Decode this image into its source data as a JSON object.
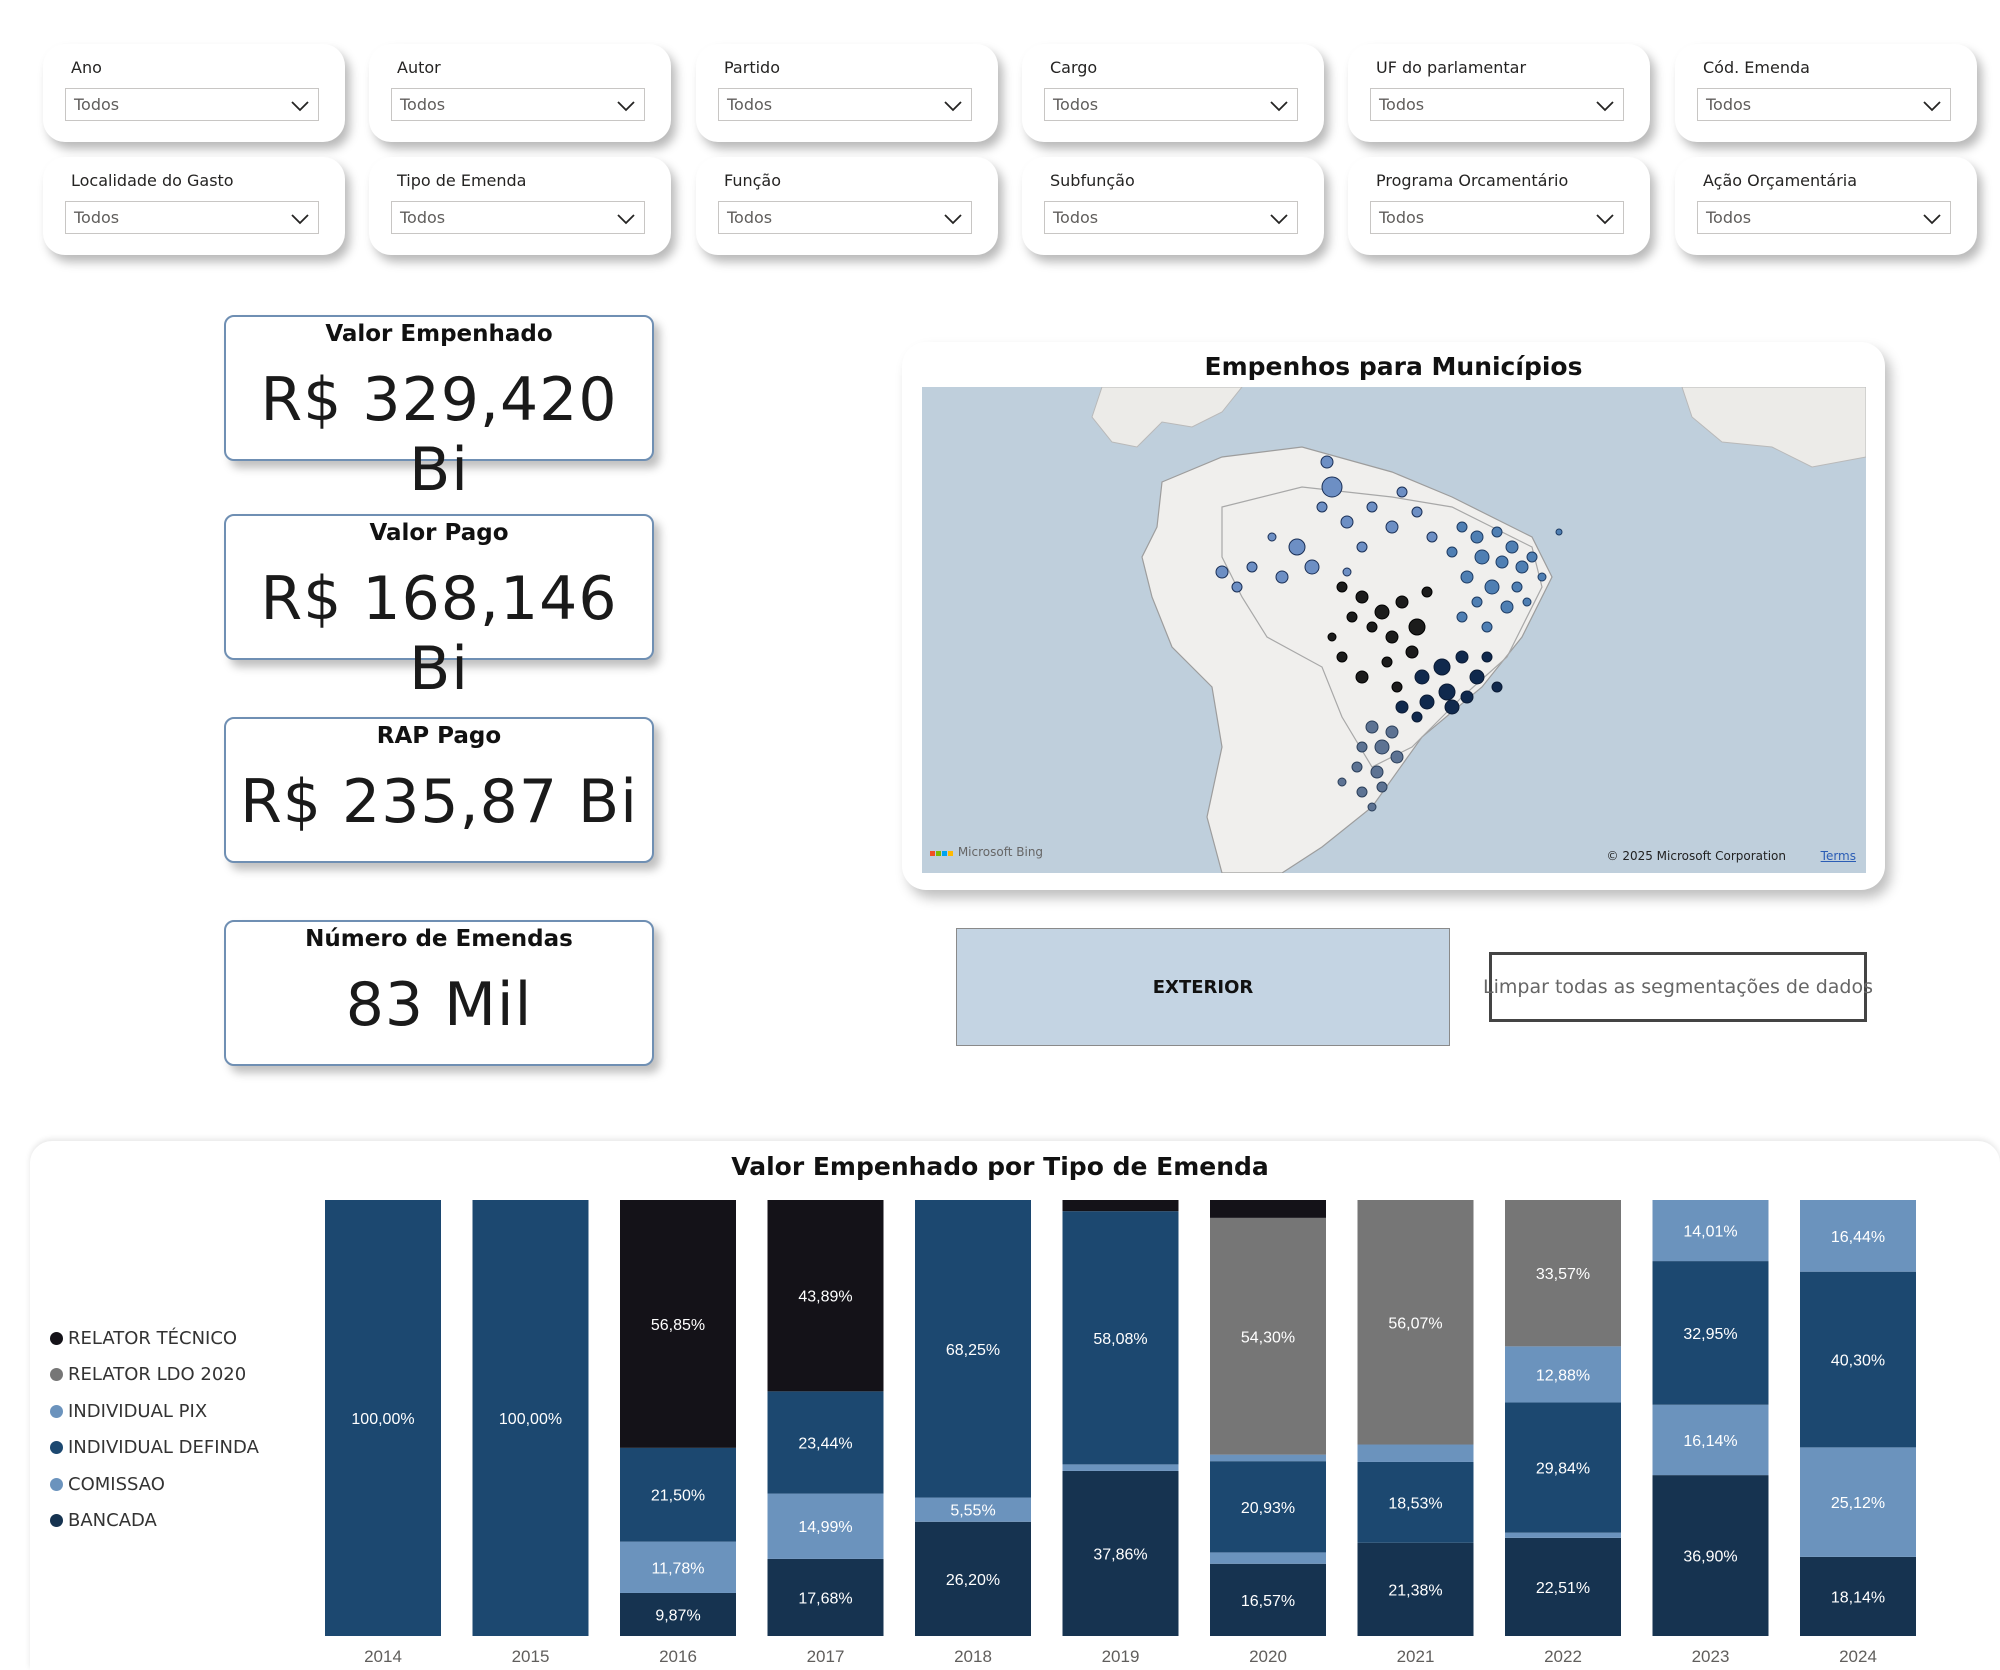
{
  "slicers": [
    {
      "label": "Ano",
      "value": "Todos"
    },
    {
      "label": "Autor",
      "value": "Todos"
    },
    {
      "label": "Partido",
      "value": "Todos"
    },
    {
      "label": "Cargo",
      "value": "Todos"
    },
    {
      "label": "UF do parlamentar",
      "value": "Todos"
    },
    {
      "label": "Cód. Emenda",
      "value": "Todos"
    },
    {
      "label": "Localidade do Gasto",
      "value": "Todos"
    },
    {
      "label": "Tipo de Emenda",
      "value": "Todos"
    },
    {
      "label": "Função",
      "value": "Todos"
    },
    {
      "label": "Subfunção",
      "value": "Todos"
    },
    {
      "label": "Programa Orcamentário",
      "value": "Todos"
    },
    {
      "label": "Ação Orçamentária",
      "value": "Todos"
    }
  ],
  "kpis": [
    {
      "title": "Valor Empenhado",
      "value": "R$ 329,420 Bi"
    },
    {
      "title": "Valor Pago",
      "value": "R$ 168,146 Bi"
    },
    {
      "title": "RAP Pago",
      "value": "R$ 235,87 Bi"
    },
    {
      "title": "Número de Emendas",
      "value": "83 Mil"
    }
  ],
  "map": {
    "title": "Empenhos para Municípios",
    "provider": "Microsoft Bing",
    "copyright": "© 2025 Microsoft Corporation",
    "terms": "Terms"
  },
  "buttons": {
    "exterior": "EXTERIOR",
    "clear": "Limpar todas as segmentações de dados"
  },
  "colors": {
    "relator_tecnico": "#141218",
    "relator_ldo": "#767676",
    "individual_pix": "#6b93bd",
    "individual_definda": "#1c4870",
    "comissao": "#6b93bd",
    "bancada": "#163350"
  },
  "chart_data": {
    "type": "bar",
    "stacked": true,
    "normalized": true,
    "title": "Valor Empenhado por Tipo de Emenda",
    "categories": [
      "2014",
      "2015",
      "2016",
      "2017",
      "2018",
      "2019",
      "2020",
      "2021",
      "2022",
      "2023",
      "2024"
    ],
    "legend": [
      "RELATOR TÉCNICO",
      "RELATOR LDO 2020",
      "INDIVIDUAL PIX",
      "INDIVIDUAL DEFINDA",
      "COMISSAO",
      "BANCADA"
    ],
    "legend_position": "left",
    "series": [
      {
        "name": "BANCADA",
        "color": "#163350",
        "values": [
          0,
          0,
          9.87,
          17.68,
          26.2,
          37.86,
          16.57,
          21.38,
          22.51,
          36.9,
          18.14
        ],
        "labels": [
          "",
          "",
          "9,87%",
          "17,68%",
          "26,20%",
          "37,86%",
          "16,57%",
          "21,38%",
          "22,51%",
          "36,90%",
          "18,14%"
        ]
      },
      {
        "name": "COMISSAO",
        "color": "#6b93bd",
        "values": [
          0,
          0,
          11.78,
          14.99,
          5.55,
          1.5,
          2.6,
          0,
          1.2,
          16.14,
          25.12
        ],
        "labels": [
          "",
          "",
          "11,78%",
          "14,99%",
          "5,55%",
          "",
          "",
          "",
          "",
          "16,14%",
          "25,12%"
        ]
      },
      {
        "name": "INDIVIDUAL DEFINDA",
        "color": "#1c4870",
        "values": [
          100,
          100,
          21.5,
          23.44,
          68.25,
          58.08,
          20.93,
          18.53,
          29.84,
          32.95,
          40.3
        ],
        "labels": [
          "100,00%",
          "100,00%",
          "21,50%",
          "23,44%",
          "68,25%",
          "58,08%",
          "20,93%",
          "18,53%",
          "29,84%",
          "32,95%",
          "40,30%"
        ]
      },
      {
        "name": "INDIVIDUAL PIX",
        "color": "#6b93bd",
        "values": [
          0,
          0,
          0,
          0,
          0,
          0,
          1.5,
          4.0,
          12.88,
          14.01,
          16.44
        ],
        "labels": [
          "",
          "",
          "",
          "",
          "",
          "",
          "",
          "",
          "12,88%",
          "14,01%",
          "16,44%"
        ]
      },
      {
        "name": "RELATOR LDO 2020",
        "color": "#767676",
        "values": [
          0,
          0,
          0,
          0,
          0,
          0,
          54.3,
          56.07,
          33.57,
          0,
          0
        ],
        "labels": [
          "",
          "",
          "",
          "",
          "",
          "",
          "54,30%",
          "56,07%",
          "33,57%",
          "",
          ""
        ]
      },
      {
        "name": "RELATOR TÉCNICO",
        "color": "#141218",
        "values": [
          0,
          0,
          56.85,
          43.89,
          0,
          2.56,
          4.1,
          0,
          0,
          0,
          0
        ],
        "labels": [
          "",
          "",
          "56,85%",
          "43,89%",
          "",
          "",
          "",
          "",
          "",
          "",
          ""
        ]
      }
    ],
    "ylim": [
      0,
      100
    ]
  }
}
